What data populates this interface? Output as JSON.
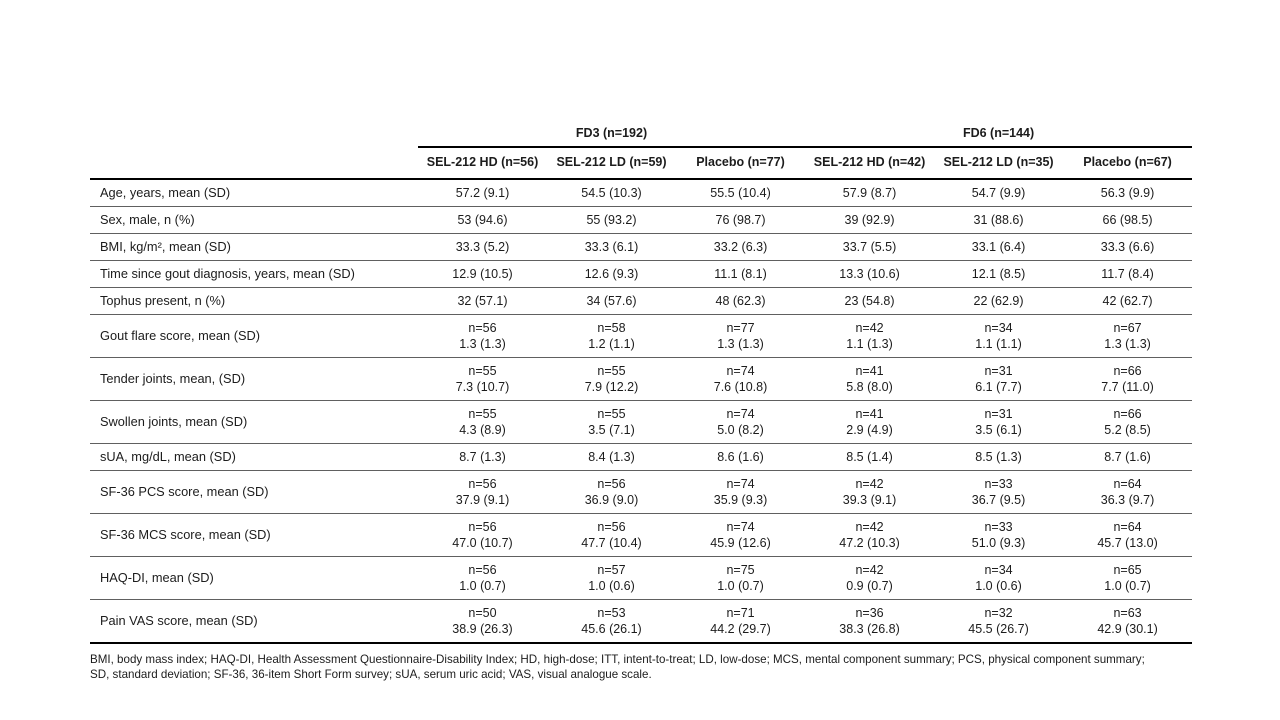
{
  "table": {
    "group_headers": [
      {
        "label": "FD3 (n=192)"
      },
      {
        "label": "FD6 (n=144)"
      }
    ],
    "column_headers": [
      "SEL-212 HD (n=56)",
      "SEL-212 LD (n=59)",
      "Placebo (n=77)",
      "SEL-212 HD (n=42)",
      "SEL-212 LD (n=35)",
      "Placebo (n=67)"
    ],
    "rows": [
      {
        "label": "Age, years, mean (SD)",
        "values": [
          "57.2 (9.1)",
          "54.5 (10.3)",
          "55.5 (10.4)",
          "57.9 (8.7)",
          "54.7 (9.9)",
          "56.3 (9.9)"
        ]
      },
      {
        "label": "Sex, male, n (%)",
        "values": [
          "53 (94.6)",
          "55 (93.2)",
          "76 (98.7)",
          "39 (92.9)",
          "31 (88.6)",
          "66 (98.5)"
        ]
      },
      {
        "label": "BMI, kg/m², mean (SD)",
        "values": [
          "33.3 (5.2)",
          "33.3 (6.1)",
          "33.2 (6.3)",
          "33.7 (5.5)",
          "33.1 (6.4)",
          "33.3 (6.6)"
        ]
      },
      {
        "label": "Time since gout diagnosis, years, mean (SD)",
        "values": [
          "12.9 (10.5)",
          "12.6 (9.3)",
          "11.1 (8.1)",
          "13.3 (10.6)",
          "12.1 (8.5)",
          "11.7 (8.4)"
        ]
      },
      {
        "label": "Tophus present, n (%)",
        "values": [
          "32 (57.1)",
          "34 (57.6)",
          "48 (62.3)",
          "23 (54.8)",
          "22 (62.9)",
          "42 (62.7)"
        ]
      },
      {
        "label": "Gout flare score, mean (SD)",
        "values": [
          [
            "n=56",
            "1.3 (1.3)"
          ],
          [
            "n=58",
            "1.2 (1.1)"
          ],
          [
            "n=77",
            "1.3 (1.3)"
          ],
          [
            "n=42",
            "1.1 (1.3)"
          ],
          [
            "n=34",
            "1.1 (1.1)"
          ],
          [
            "n=67",
            "1.3 (1.3)"
          ]
        ]
      },
      {
        "label": "Tender joints, mean, (SD)",
        "values": [
          [
            "n=55",
            "7.3 (10.7)"
          ],
          [
            "n=55",
            "7.9 (12.2)"
          ],
          [
            "n=74",
            "7.6 (10.8)"
          ],
          [
            "n=41",
            "5.8 (8.0)"
          ],
          [
            "n=31",
            "6.1 (7.7)"
          ],
          [
            "n=66",
            "7.7 (11.0)"
          ]
        ]
      },
      {
        "label": "Swollen joints, mean (SD)",
        "values": [
          [
            "n=55",
            "4.3 (8.9)"
          ],
          [
            "n=55",
            "3.5 (7.1)"
          ],
          [
            "n=74",
            "5.0 (8.2)"
          ],
          [
            "n=41",
            "2.9 (4.9)"
          ],
          [
            "n=31",
            "3.5 (6.1)"
          ],
          [
            "n=66",
            "5.2 (8.5)"
          ]
        ]
      },
      {
        "label": "sUA, mg/dL, mean (SD)",
        "values": [
          "8.7 (1.3)",
          "8.4 (1.3)",
          "8.6 (1.6)",
          "8.5 (1.4)",
          "8.5 (1.3)",
          "8.7 (1.6)"
        ]
      },
      {
        "label": "SF-36 PCS score, mean (SD)",
        "values": [
          [
            "n=56",
            "37.9 (9.1)"
          ],
          [
            "n=56",
            "36.9 (9.0)"
          ],
          [
            "n=74",
            "35.9 (9.3)"
          ],
          [
            "n=42",
            "39.3 (9.1)"
          ],
          [
            "n=33",
            "36.7 (9.5)"
          ],
          [
            "n=64",
            "36.3 (9.7)"
          ]
        ]
      },
      {
        "label": "SF-36 MCS score, mean (SD)",
        "values": [
          [
            "n=56",
            "47.0 (10.7)"
          ],
          [
            "n=56",
            "47.7 (10.4)"
          ],
          [
            "n=74",
            "45.9 (12.6)"
          ],
          [
            "n=42",
            "47.2 (10.3)"
          ],
          [
            "n=33",
            "51.0 (9.3)"
          ],
          [
            "n=64",
            "45.7 (13.0)"
          ]
        ]
      },
      {
        "label": "HAQ-DI, mean (SD)",
        "values": [
          [
            "n=56",
            "1.0 (0.7)"
          ],
          [
            "n=57",
            "1.0 (0.6)"
          ],
          [
            "n=75",
            "1.0 (0.7)"
          ],
          [
            "n=42",
            "0.9 (0.7)"
          ],
          [
            "n=34",
            "1.0 (0.6)"
          ],
          [
            "n=65",
            "1.0 (0.7)"
          ]
        ]
      },
      {
        "label": "Pain VAS score, mean (SD)",
        "values": [
          [
            "n=50",
            "38.9 (26.3)"
          ],
          [
            "n=53",
            "45.6 (26.1)"
          ],
          [
            "n=71",
            "44.2 (29.7)"
          ],
          [
            "n=36",
            "38.3 (26.8)"
          ],
          [
            "n=32",
            "45.5 (26.7)"
          ],
          [
            "n=63",
            "42.9 (30.1)"
          ]
        ]
      }
    ]
  },
  "footnote": {
    "lines": [
      "BMI, body mass index; HAQ-DI, Health Assessment Questionnaire-Disability Index; HD, high-dose; ITT, intent-to-treat; LD, low-dose; MCS, mental component summary; PCS, physical component summary;",
      "SD, standard deviation; SF-36, 36-item Short Form survey; sUA, serum uric acid; VAS, visual analogue scale."
    ]
  }
}
